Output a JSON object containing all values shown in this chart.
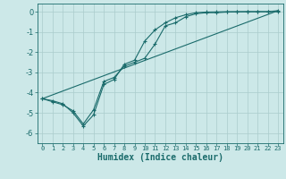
{
  "xlabel": "Humidex (Indice chaleur)",
  "background_color": "#cce8e8",
  "grid_color": "#aacccc",
  "line_color": "#1a6b6b",
  "xlim": [
    -0.5,
    23.5
  ],
  "ylim": [
    -6.5,
    0.4
  ],
  "yticks": [
    0,
    -1,
    -2,
    -3,
    -4,
    -5,
    -6
  ],
  "xticks": [
    0,
    1,
    2,
    3,
    4,
    5,
    6,
    7,
    8,
    9,
    10,
    11,
    12,
    13,
    14,
    15,
    16,
    17,
    18,
    19,
    20,
    21,
    22,
    23
  ],
  "line1_x": [
    0,
    1,
    2,
    3,
    4,
    5,
    6,
    7,
    8,
    9,
    10,
    11,
    12,
    13,
    14,
    15,
    16,
    17,
    18,
    19,
    20,
    21,
    22,
    23
  ],
  "line1_y": [
    -4.3,
    -4.45,
    -4.6,
    -4.9,
    -5.55,
    -4.85,
    -3.45,
    -3.25,
    -2.7,
    -2.5,
    -2.3,
    -1.6,
    -0.7,
    -0.55,
    -0.25,
    -0.1,
    -0.05,
    -0.05,
    -0.02,
    -0.01,
    0.0,
    0.0,
    0.0,
    0.05
  ],
  "line2_x": [
    0,
    1,
    2,
    3,
    4,
    5,
    6,
    7,
    8,
    9,
    10,
    11,
    12,
    13,
    14,
    15,
    16,
    17,
    18,
    19,
    20,
    21,
    22,
    23
  ],
  "line2_y": [
    -4.3,
    -4.4,
    -4.55,
    -5.0,
    -5.65,
    -5.1,
    -3.6,
    -3.35,
    -2.6,
    -2.4,
    -1.45,
    -0.9,
    -0.55,
    -0.3,
    -0.15,
    -0.05,
    -0.02,
    -0.01,
    0.0,
    0.0,
    0.0,
    0.0,
    0.0,
    0.0
  ],
  "line3_x": [
    0,
    23
  ],
  "line3_y": [
    -4.3,
    0.05
  ]
}
